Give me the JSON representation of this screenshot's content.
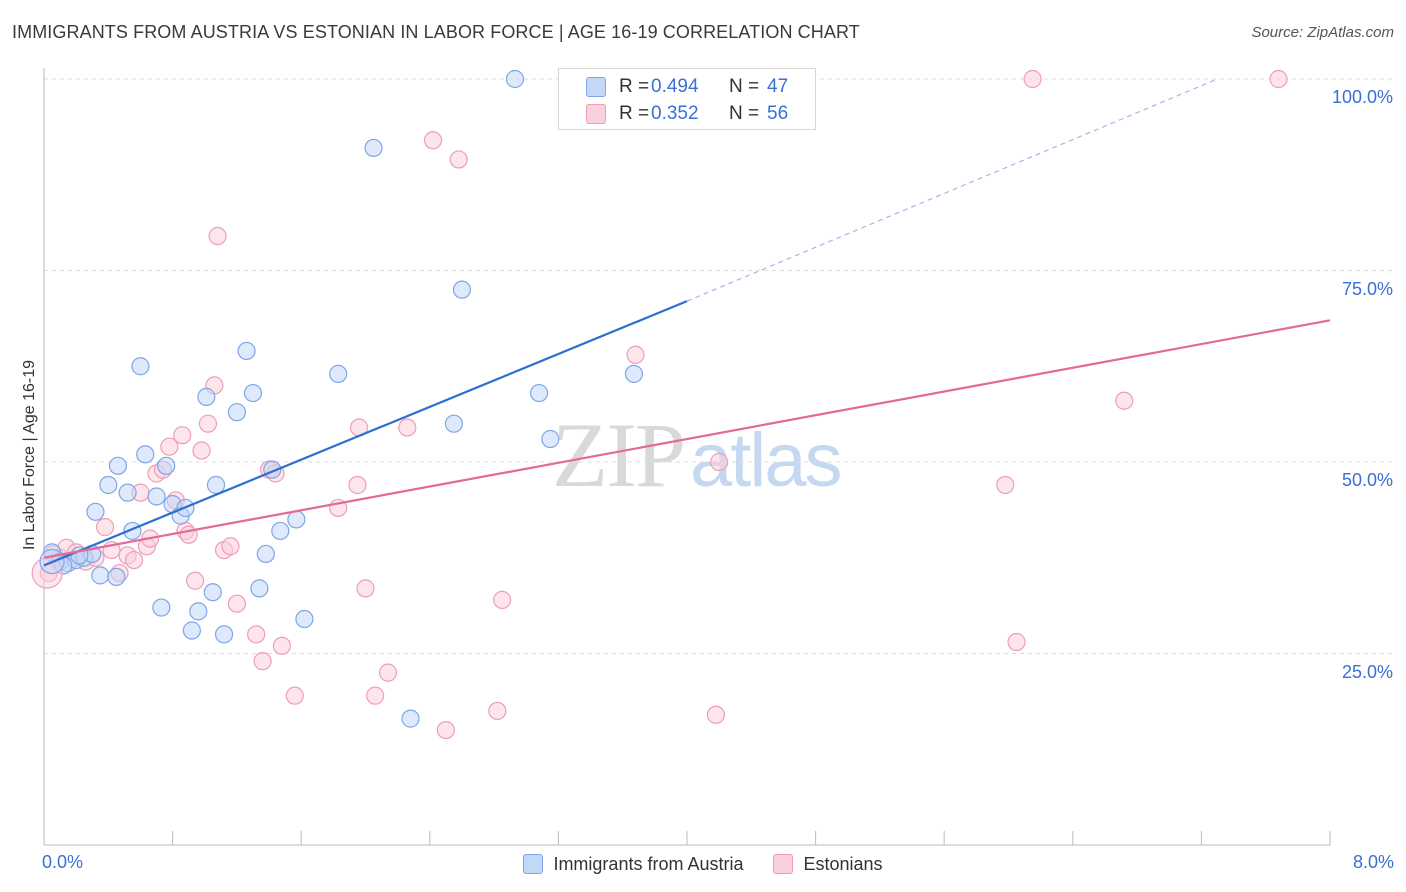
{
  "header": {
    "title": "IMMIGRANTS FROM AUSTRIA VS ESTONIAN IN LABOR FORCE | AGE 16-19 CORRELATION CHART",
    "source": "Source: ZipAtlas.com"
  },
  "watermark": {
    "zip": "ZIP",
    "atlas": "atlas"
  },
  "stats_legend": {
    "series": [
      {
        "r_label": "R =",
        "r_value": "0.494",
        "n_label": "N =",
        "n_value": "47"
      },
      {
        "r_label": "R =",
        "r_value": "0.352",
        "n_label": "N =",
        "n_value": "56"
      }
    ]
  },
  "colors": {
    "austria_fill": "#c3d7f7",
    "austria_stroke": "#7ea6e8",
    "austria_line": "#2c6fd1",
    "estonian_fill": "#fbd0dd",
    "estonian_stroke": "#ef9db7",
    "estonian_line": "#e36a96",
    "tick_label": "#3a6fd4",
    "grid": "#dddddd"
  },
  "chart_data": {
    "type": "scatter",
    "ylabel": "In Labor Force | Age 16-19",
    "xlim": [
      0,
      8
    ],
    "ylim": [
      0,
      100
    ],
    "x_tick_labels": [
      {
        "value": 0,
        "label": "0.0%"
      },
      {
        "value": 8,
        "label": "8.0%"
      }
    ],
    "y_tick_labels": [
      {
        "value": 25,
        "label": "25.0%"
      },
      {
        "value": 50,
        "label": "50.0%"
      },
      {
        "value": 75,
        "label": "75.0%"
      },
      {
        "value": 100,
        "label": "100.0%"
      }
    ],
    "grid": true,
    "legend_position": "bottom",
    "series": [
      {
        "name": "Immigrants from Austria",
        "trend": {
          "x0": 0.0,
          "y0": 36.5,
          "x1": 4.0,
          "y1": 71.0,
          "dash_to_x": 7.3,
          "dash_to_y": 100
        },
        "points": [
          [
            0.05,
            38.2
          ],
          [
            0.1,
            37.0
          ],
          [
            0.15,
            36.8
          ],
          [
            0.2,
            37.2
          ],
          [
            0.25,
            37.5
          ],
          [
            0.3,
            38.0
          ],
          [
            0.35,
            35.2
          ],
          [
            0.45,
            35.0
          ],
          [
            0.32,
            43.5
          ],
          [
            0.4,
            47.0
          ],
          [
            0.46,
            49.5
          ],
          [
            0.52,
            46.0
          ],
          [
            0.55,
            41.0
          ],
          [
            0.6,
            62.5
          ],
          [
            0.63,
            51.0
          ],
          [
            0.7,
            45.5
          ],
          [
            0.73,
            31.0
          ],
          [
            0.76,
            49.5
          ],
          [
            0.8,
            44.5
          ],
          [
            0.85,
            43.0
          ],
          [
            0.88,
            44.0
          ],
          [
            0.92,
            28.0
          ],
          [
            0.96,
            30.5
          ],
          [
            1.01,
            58.5
          ],
          [
            1.05,
            33.0
          ],
          [
            1.07,
            47.0
          ],
          [
            1.12,
            27.5
          ],
          [
            1.2,
            56.5
          ],
          [
            1.26,
            64.5
          ],
          [
            1.3,
            59.0
          ],
          [
            1.34,
            33.5
          ],
          [
            1.38,
            38.0
          ],
          [
            1.42,
            49.0
          ],
          [
            1.47,
            41.0
          ],
          [
            1.57,
            42.5
          ],
          [
            1.62,
            29.5
          ],
          [
            1.83,
            61.5
          ],
          [
            2.05,
            91.0
          ],
          [
            2.28,
            16.5
          ],
          [
            2.55,
            55.0
          ],
          [
            2.6,
            72.5
          ],
          [
            2.93,
            100.0
          ],
          [
            3.08,
            59.0
          ],
          [
            3.15,
            53.0
          ],
          [
            3.67,
            61.5
          ],
          [
            0.12,
            36.5
          ],
          [
            0.22,
            37.8
          ]
        ]
      },
      {
        "name": "Estonians",
        "trend": {
          "x0": 0.0,
          "y0": 37.5,
          "x1": 8.0,
          "y1": 68.5
        },
        "points": [
          [
            0.03,
            35.5
          ],
          [
            0.06,
            38.0
          ],
          [
            0.1,
            37.5
          ],
          [
            0.14,
            38.8
          ],
          [
            0.2,
            38.2
          ],
          [
            0.26,
            37.0
          ],
          [
            0.32,
            37.5
          ],
          [
            0.38,
            41.5
          ],
          [
            0.42,
            38.5
          ],
          [
            0.47,
            35.5
          ],
          [
            0.52,
            37.8
          ],
          [
            0.56,
            37.2
          ],
          [
            0.6,
            46.0
          ],
          [
            0.64,
            39.0
          ],
          [
            0.66,
            40.0
          ],
          [
            0.7,
            48.5
          ],
          [
            0.74,
            49.0
          ],
          [
            0.78,
            52.0
          ],
          [
            0.82,
            45.0
          ],
          [
            0.86,
            53.5
          ],
          [
            0.88,
            41.0
          ],
          [
            0.9,
            40.5
          ],
          [
            0.94,
            34.5
          ],
          [
            0.98,
            51.5
          ],
          [
            1.02,
            55.0
          ],
          [
            1.06,
            60.0
          ],
          [
            1.08,
            79.5
          ],
          [
            1.12,
            38.5
          ],
          [
            1.16,
            39.0
          ],
          [
            1.2,
            31.5
          ],
          [
            1.32,
            27.5
          ],
          [
            1.36,
            24.0
          ],
          [
            1.4,
            49.0
          ],
          [
            1.44,
            48.5
          ],
          [
            1.48,
            26.0
          ],
          [
            1.56,
            19.5
          ],
          [
            1.83,
            44.0
          ],
          [
            1.95,
            47.0
          ],
          [
            1.96,
            54.5
          ],
          [
            2.0,
            33.5
          ],
          [
            2.06,
            19.5
          ],
          [
            2.14,
            22.5
          ],
          [
            2.26,
            54.5
          ],
          [
            2.42,
            92.0
          ],
          [
            2.5,
            15.0
          ],
          [
            2.58,
            89.5
          ],
          [
            2.82,
            17.5
          ],
          [
            2.85,
            32.0
          ],
          [
            4.18,
            17.0
          ],
          [
            4.2,
            50.0
          ],
          [
            3.68,
            64.0
          ],
          [
            5.98,
            47.0
          ],
          [
            6.05,
            26.5
          ],
          [
            6.15,
            100.0
          ],
          [
            6.72,
            58.0
          ],
          [
            7.68,
            100.0
          ]
        ]
      }
    ]
  }
}
